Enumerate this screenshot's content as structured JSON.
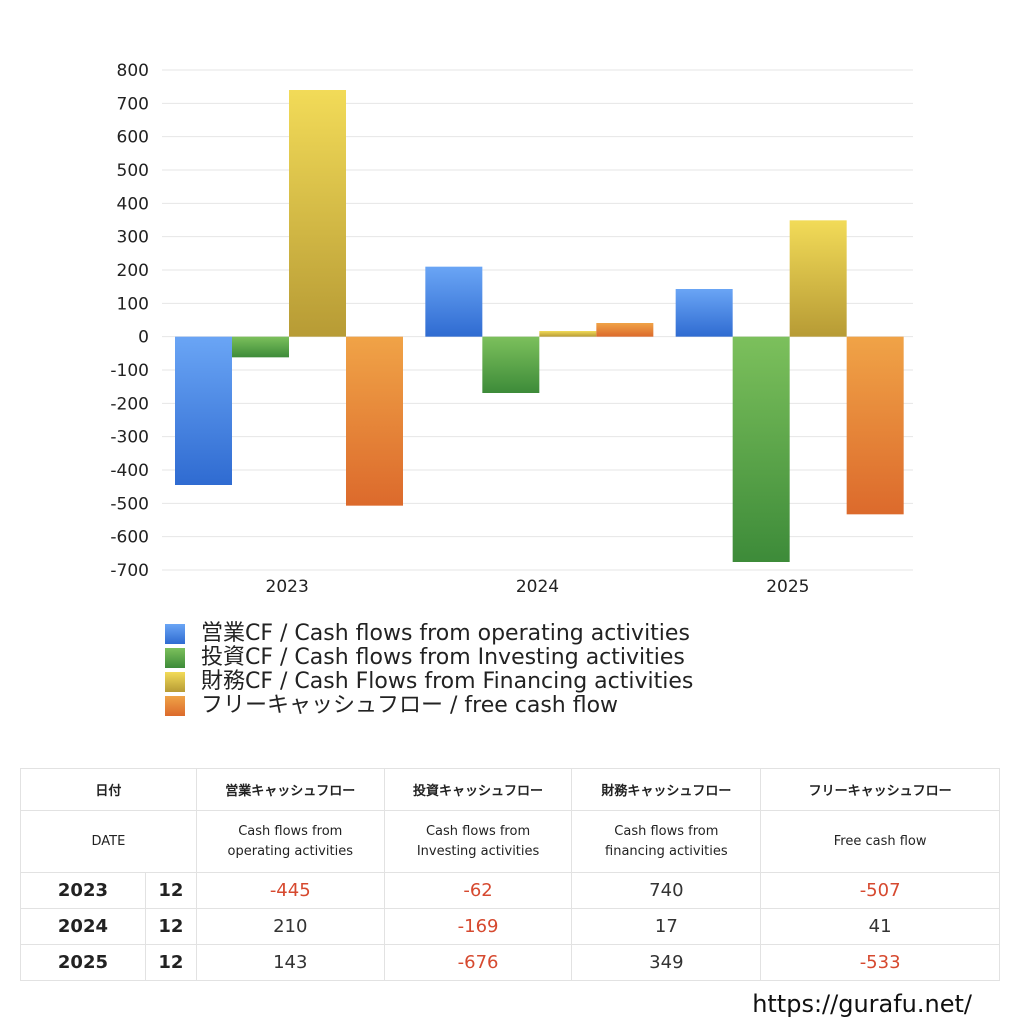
{
  "chart_data": {
    "type": "bar",
    "categories": [
      "2023",
      "2024",
      "2025"
    ],
    "series": [
      {
        "name": "営業CF / Cash flows from operating activities",
        "values": [
          -445,
          210,
          143
        ],
        "color_top": "#6aa5f5",
        "color_bottom": "#2f6bd1"
      },
      {
        "name": "投資CF / Cash flows from Investing activities",
        "values": [
          -62,
          -169,
          -676
        ],
        "color_top": "#7cc05c",
        "color_bottom": "#3d8b39"
      },
      {
        "name": "財務CF / Cash Flows from Financing activities",
        "values": [
          740,
          17,
          349
        ],
        "color_top": "#f2db58",
        "color_bottom": "#b79b35"
      },
      {
        "name": "フリーキャッシュフロー / free cash flow",
        "values": [
          -507,
          41,
          -533
        ],
        "color_top": "#f0a347",
        "color_bottom": "#dc6a2c"
      }
    ],
    "ylim": [
      -700,
      800
    ],
    "yticks": [
      "800",
      "700",
      "600",
      "500",
      "400",
      "300",
      "200",
      "100",
      "0",
      "-100",
      "-200",
      "-300",
      "-400",
      "-500",
      "-600",
      "-700"
    ],
    "grid": true,
    "legend_placement": "bottom"
  },
  "table": {
    "header_jp": {
      "date": "日付",
      "operating": "営業キャッシュフロー",
      "investing": "投資キャッシュフロー",
      "financing": "財務キャッシュフロー",
      "free": "フリーキャッシュフロー"
    },
    "header_en": {
      "date": "DATE",
      "operating_1": "Cash flows from",
      "operating_2": "operating activities",
      "investing_1": "Cash flows from",
      "investing_2": "Investing activities",
      "financing_1": "Cash flows from",
      "financing_2": "financing activities",
      "free": "Free cash flow"
    },
    "rows": [
      {
        "year": "2023",
        "month": "12",
        "operating": "-445",
        "investing": "-62",
        "financing": "740",
        "free": "-507"
      },
      {
        "year": "2024",
        "month": "12",
        "operating": "210",
        "investing": "-169",
        "financing": "17",
        "free": "41"
      },
      {
        "year": "2025",
        "month": "12",
        "operating": "143",
        "investing": "-676",
        "financing": "349",
        "free": "-533"
      }
    ],
    "negative_color": "#d6492f"
  },
  "footer": {
    "url": "https://gurafu.net/"
  }
}
